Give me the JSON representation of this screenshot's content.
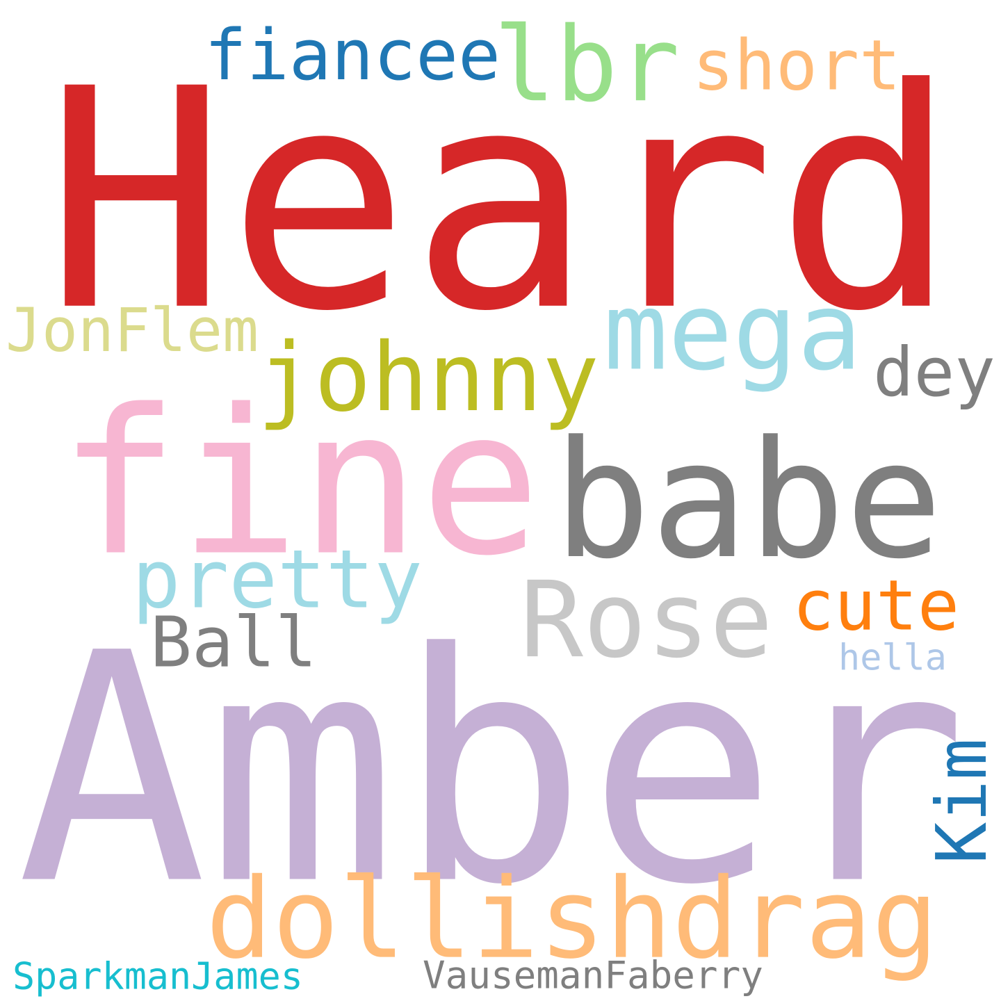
{
  "words": [
    {
      "key": "heard",
      "text": "Heard",
      "color": "#d62728"
    },
    {
      "key": "fiancee",
      "text": "fiancee",
      "color": "#1f77b4"
    },
    {
      "key": "lbr",
      "text": "lbr",
      "color": "#98df8a"
    },
    {
      "key": "short",
      "text": "short",
      "color": "#ffbb78"
    },
    {
      "key": "jonflem",
      "text": "JonFlem",
      "color": "#dbdb8d"
    },
    {
      "key": "johnny",
      "text": "johnny",
      "color": "#bcbd22"
    },
    {
      "key": "mega",
      "text": "mega",
      "color": "#9edae5"
    },
    {
      "key": "dey",
      "text": "dey",
      "color": "#7f7f7f"
    },
    {
      "key": "fine",
      "text": "fine",
      "color": "#f7b6d2"
    },
    {
      "key": "babe",
      "text": "babe",
      "color": "#7f7f7f"
    },
    {
      "key": "pretty",
      "text": "pretty",
      "color": "#9edae5"
    },
    {
      "key": "rose",
      "text": "Rose",
      "color": "#c7c7c7"
    },
    {
      "key": "cute",
      "text": "cute",
      "color": "#ff7f0e"
    },
    {
      "key": "ball",
      "text": "Ball",
      "color": "#7f7f7f"
    },
    {
      "key": "hella",
      "text": "hella",
      "color": "#aec7e8"
    },
    {
      "key": "amber",
      "text": "Amber",
      "color": "#c5b0d5"
    },
    {
      "key": "kim",
      "text": "Kim",
      "color": "#1f77b4"
    },
    {
      "key": "dollishdrag",
      "text": "dollishdrag",
      "color": "#ffbb78"
    },
    {
      "key": "sparkmanjames",
      "text": "SparkmanJames",
      "color": "#17becf"
    },
    {
      "key": "vausemanfaberry",
      "text": "VausemanFaberry",
      "color": "#7f7f7f"
    }
  ]
}
